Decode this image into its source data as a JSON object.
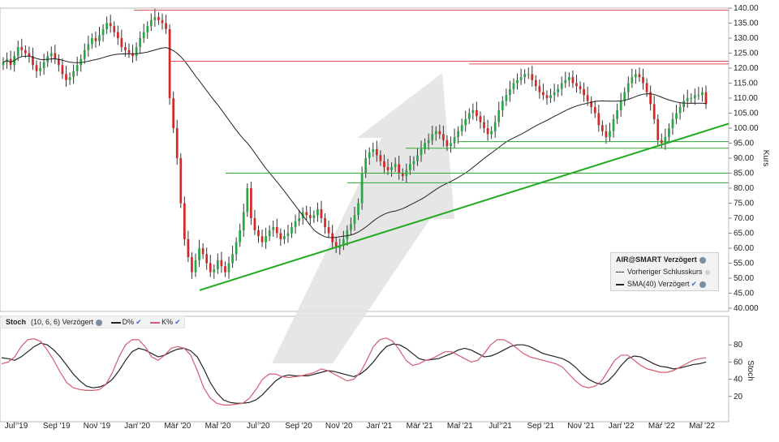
{
  "colors": {
    "up": "#28a745",
    "down": "#d62728",
    "sma": "#222222",
    "resistance": "#e05050",
    "support": "#2eaa2e",
    "trend": "#22aa22",
    "stoch_d": "#222222",
    "stoch_k": "#d65a70",
    "arrow": "#e2e2e2"
  },
  "legend": {
    "title": "AIR@SMART Verzögert",
    "prev_close": "Vorheriger Schlusskurs",
    "sma": "SMA(40) Verzögert"
  },
  "stoch_header": {
    "name": "Stoch",
    "params": "(10, 6, 6) Verzögert",
    "d_label": "D%",
    "k_label": "K%"
  },
  "chart_data": [
    {
      "type": "candlestick",
      "ylabel": "Kurs",
      "ylim": [
        40,
        140
      ],
      "y_ticks": [
        "140.00",
        "135.00",
        "130.00",
        "125.00",
        "120.00",
        "115.00",
        "110.00",
        "105.00",
        "100.00",
        "95.00",
        "90.00",
        "85.00",
        "80.00",
        "75.00",
        "70.00",
        "65.00",
        "60.00",
        "55.00",
        "50.00",
        "45.00",
        "40.000"
      ],
      "x_tick_labels": [
        "Jul '19",
        "Sep '19",
        "Nov '19",
        "Jan '20",
        "Mär '20",
        "Mai '20",
        "Jul '20",
        "Sep '20",
        "Nov '20",
        "Jan '21",
        "Mär '21",
        "Mai '21",
        "Jul '21",
        "Sep '21",
        "Nov '21",
        "Jan '22",
        "Mär '22",
        "Mai '22"
      ],
      "x_range_months": [
        0,
        17.8
      ],
      "close": [
        122,
        123,
        121,
        124,
        127,
        126,
        125,
        124,
        121,
        119,
        120,
        122,
        124,
        125,
        123,
        121,
        118,
        116,
        117,
        119,
        121,
        123,
        126,
        128,
        130,
        129,
        131,
        133,
        135,
        134,
        132,
        130,
        127,
        126,
        125,
        124,
        127,
        130,
        132,
        134,
        136,
        137,
        136,
        135,
        133,
        110,
        100,
        90,
        75,
        63,
        57,
        52,
        56,
        60,
        58,
        55,
        52,
        53,
        56,
        54,
        52,
        55,
        58,
        62,
        66,
        72,
        80,
        70,
        66,
        64,
        62,
        64,
        66,
        67,
        65,
        63,
        64,
        65,
        67,
        69,
        70,
        72,
        71,
        70,
        71,
        73,
        70,
        67,
        65,
        62,
        60,
        61,
        63,
        66,
        68,
        71,
        75,
        85,
        90,
        92,
        93,
        91,
        89,
        87,
        86,
        87,
        88,
        85,
        84,
        86,
        88,
        89,
        91,
        93,
        95,
        96,
        98,
        99,
        98,
        96,
        94,
        95,
        97,
        99,
        101,
        103,
        105,
        106,
        104,
        102,
        100,
        98,
        99,
        102,
        106,
        109,
        111,
        113,
        115,
        116,
        117,
        118,
        118,
        116,
        114,
        112,
        111,
        110,
        111,
        112,
        113,
        115,
        116,
        117,
        115,
        114,
        113,
        111,
        109,
        107,
        105,
        101,
        99,
        97,
        99,
        103,
        106,
        109,
        112,
        115,
        117,
        118,
        117,
        115,
        112,
        108,
        103,
        96,
        95,
        97,
        100,
        103,
        105,
        107,
        109,
        110,
        110,
        111,
        111,
        112,
        108
      ],
      "sma_period": 40,
      "resistance_levels": [
        139.3,
        122.3,
        121.4
      ],
      "support_levels": [
        95.5,
        93.3,
        85.0,
        81.8
      ],
      "trendline": {
        "from": [
          "Apr '20",
          46.0
        ],
        "to": [
          "Jun '22",
          101.5
        ]
      },
      "legend_position": "bottom-right"
    },
    {
      "type": "line",
      "title": "Stoch",
      "ylim": [
        0,
        100
      ],
      "y_ticks": [
        80,
        60,
        40,
        20
      ],
      "ylabel": "Stoch",
      "series": [
        {
          "name": "D%",
          "values": [
            65,
            64,
            62,
            66,
            72,
            78,
            82,
            80,
            74,
            66,
            56,
            46,
            38,
            32,
            30,
            31,
            34,
            40,
            50,
            62,
            72,
            76,
            74,
            70,
            66,
            68,
            72,
            75,
            76,
            73,
            66,
            52,
            36,
            24,
            16,
            13,
            12,
            12,
            13,
            16,
            22,
            30,
            38,
            43,
            45,
            44,
            44,
            44,
            46,
            48,
            50,
            49,
            47,
            45,
            43,
            46,
            52,
            60,
            70,
            78,
            81,
            80,
            76,
            70,
            64,
            62,
            63,
            64,
            67,
            70,
            74,
            76,
            74,
            70,
            66,
            67,
            70,
            74,
            78,
            80,
            80,
            78,
            74,
            70,
            68,
            66,
            64,
            60,
            54,
            46,
            40,
            36,
            34,
            38,
            46,
            56,
            64,
            67,
            66,
            62,
            58,
            55,
            54,
            52,
            53,
            55,
            57,
            58,
            60
          ]
        },
        {
          "name": "K%",
          "values": [
            58,
            60,
            66,
            78,
            86,
            87,
            84,
            74,
            62,
            48,
            36,
            30,
            28,
            27,
            27,
            28,
            34,
            48,
            66,
            80,
            86,
            86,
            78,
            66,
            62,
            68,
            76,
            78,
            76,
            68,
            50,
            30,
            18,
            12,
            10,
            10,
            11,
            12,
            18,
            28,
            40,
            46,
            46,
            43,
            42,
            43,
            44,
            46,
            48,
            52,
            50,
            46,
            42,
            38,
            40,
            48,
            62,
            78,
            86,
            88,
            84,
            74,
            62,
            56,
            58,
            62,
            64,
            68,
            72,
            72,
            68,
            64,
            60,
            62,
            70,
            80,
            86,
            86,
            82,
            76,
            70,
            66,
            64,
            62,
            60,
            58,
            54,
            46,
            38,
            32,
            30,
            32,
            38,
            50,
            62,
            68,
            68,
            62,
            56,
            52,
            50,
            48,
            48,
            50,
            54,
            58,
            62,
            64,
            65
          ]
        }
      ],
      "legend_position": "top-left"
    }
  ]
}
